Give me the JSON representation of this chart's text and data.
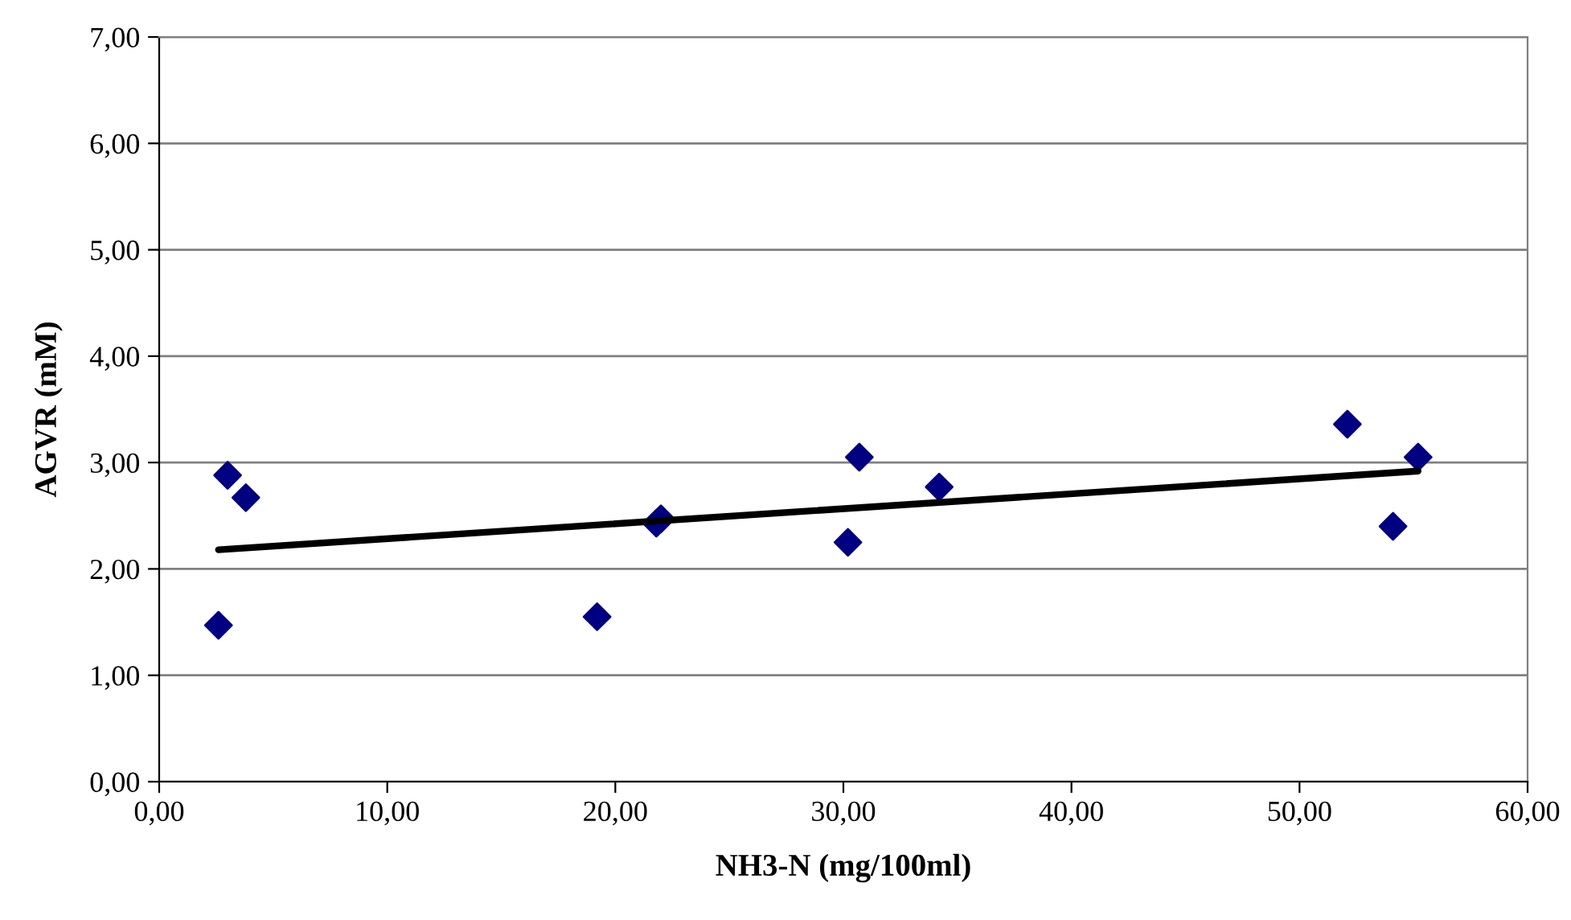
{
  "chart_data": {
    "type": "scatter",
    "xlabel": "NH3-N (mg/100ml)",
    "ylabel": "AGVR (mM)",
    "series": [
      {
        "color": "#000080",
        "marker": "diamond",
        "x": [
          2.6,
          3.0,
          3.8,
          19.2,
          21.8,
          22.0,
          30.2,
          30.7,
          34.2,
          52.1,
          54.1,
          55.2
        ],
        "values": [
          1.47,
          2.88,
          2.67,
          1.55,
          2.43,
          2.47,
          2.25,
          3.05,
          2.77,
          3.36,
          2.4,
          3.05
        ]
      },
      {
        "type": "line",
        "color": "#000000",
        "marker": "none",
        "line_style": "solid",
        "x": [
          2.6,
          55.2
        ],
        "values": [
          2.18,
          2.92
        ]
      }
    ],
    "xlim": [
      0,
      60
    ],
    "ylim": [
      0,
      7
    ],
    "xticks": [
      {
        "value": 0,
        "label": "0,00"
      },
      {
        "value": 10,
        "label": "10,00"
      },
      {
        "value": 20,
        "label": "20,00"
      },
      {
        "value": 30,
        "label": "30,00"
      },
      {
        "value": 40,
        "label": "40,00"
      },
      {
        "value": 50,
        "label": "50,00"
      },
      {
        "value": 60,
        "label": "60,00"
      }
    ],
    "yticks": [
      {
        "value": 0,
        "label": "0,00"
      },
      {
        "value": 1,
        "label": "1,00"
      },
      {
        "value": 2,
        "label": "2,00"
      },
      {
        "value": 3,
        "label": "3,00"
      },
      {
        "value": 4,
        "label": "4,00"
      },
      {
        "value": 5,
        "label": "5,00"
      },
      {
        "value": 6,
        "label": "6,00"
      },
      {
        "value": 7,
        "label": "7,00"
      }
    ],
    "grid": "y",
    "legend": false
  }
}
